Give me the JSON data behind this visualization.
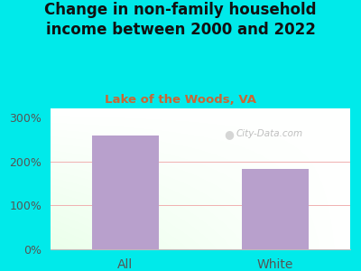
{
  "title": "Change in non-family household\nincome between 2000 and 2022",
  "subtitle": "Lake of the Woods, VA",
  "categories": [
    "All",
    "White"
  ],
  "values": [
    258,
    183
  ],
  "bar_color": "#b8a0cc",
  "background_color": "#00eaea",
  "title_color": "#111111",
  "subtitle_color": "#cc6633",
  "tick_label_color": "#555555",
  "yticks": [
    0,
    100,
    200,
    300
  ],
  "ylim": [
    0,
    320
  ],
  "grid_color": "#f0b0b0",
  "watermark": "City-Data.com",
  "title_fontsize": 12,
  "subtitle_fontsize": 9.5,
  "tick_fontsize": 9,
  "bar_width": 0.45
}
